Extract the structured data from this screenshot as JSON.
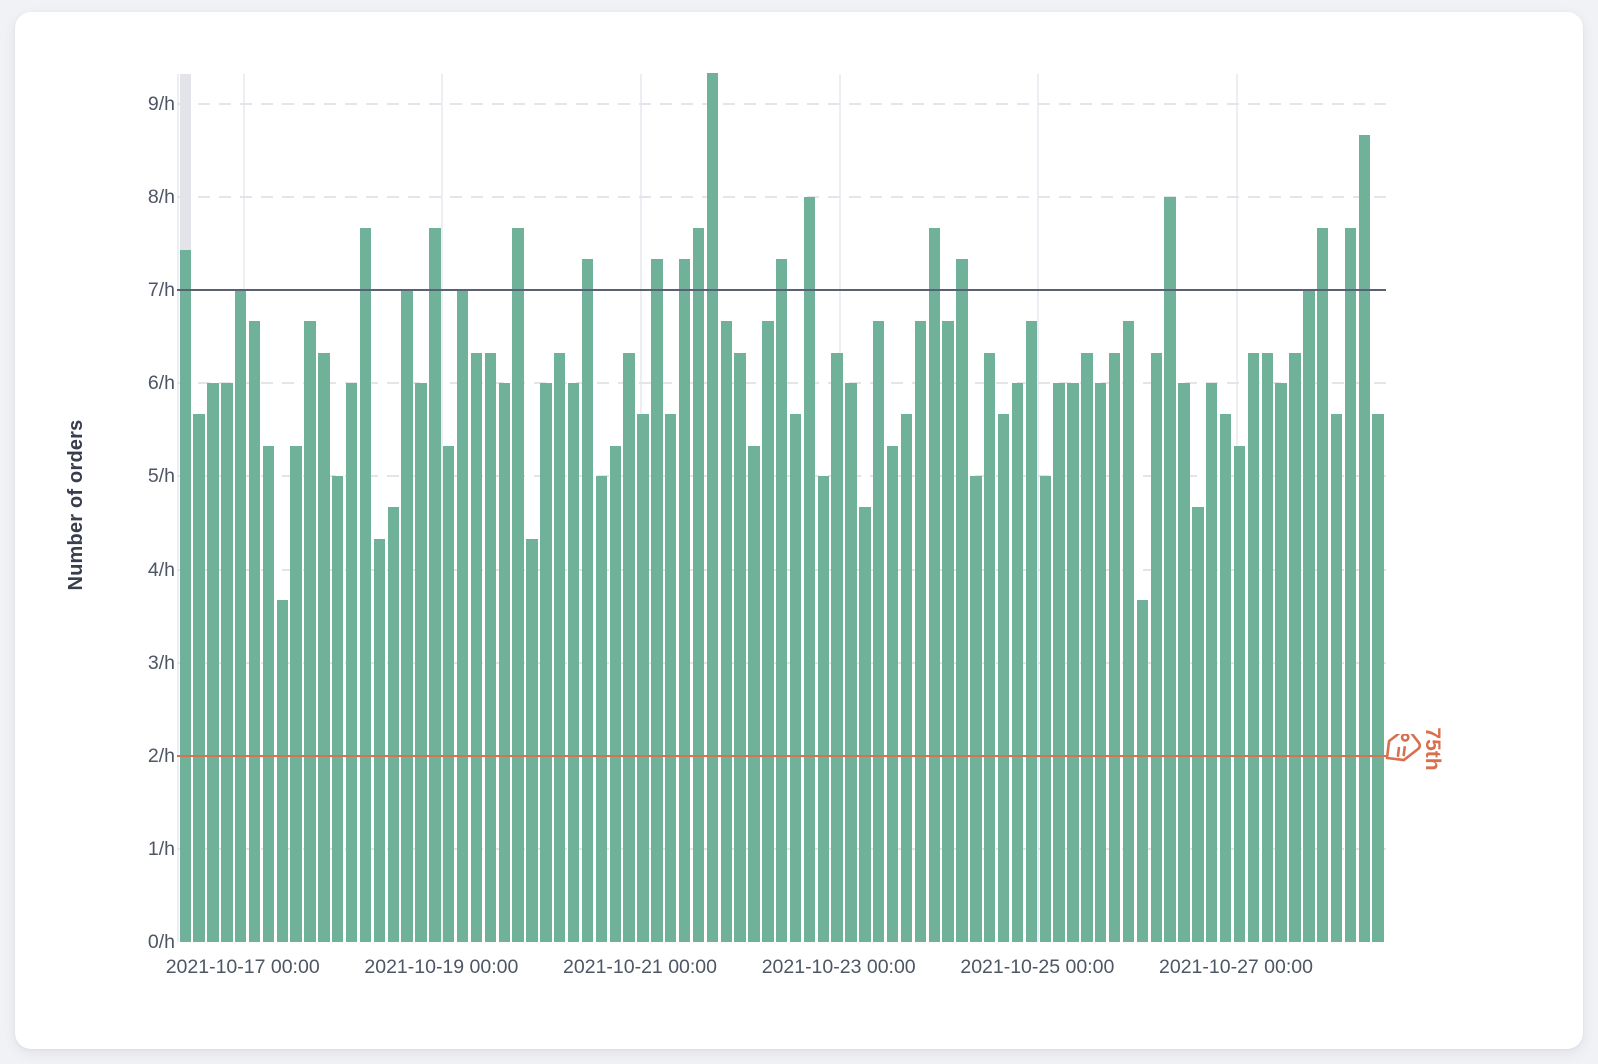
{
  "chart_data": {
    "type": "bar",
    "title": "",
    "ylabel": "Number of orders",
    "xlabel": "",
    "unit_suffix": "/h",
    "ylim": [
      0,
      9.35
    ],
    "grid": true,
    "y_ticks": [
      "0/h",
      "1/h",
      "2/h",
      "3/h",
      "4/h",
      "5/h",
      "6/h",
      "7/h",
      "8/h",
      "9/h"
    ],
    "x_ticks": [
      "2021-10-17 00:00",
      "2021-10-19 00:00",
      "2021-10-21 00:00",
      "2021-10-23 00:00",
      "2021-10-25 00:00",
      "2021-10-27 00:00"
    ],
    "values": [
      7.43,
      5.67,
      6,
      6,
      7,
      6.67,
      5.33,
      3.67,
      5.33,
      6.67,
      6.33,
      5,
      6,
      7.67,
      4.33,
      4.67,
      7,
      6,
      7.67,
      5.33,
      7,
      6.33,
      6.33,
      6,
      7.67,
      4.33,
      6,
      6.33,
      6,
      7.33,
      5,
      5.33,
      6.33,
      5.67,
      7.33,
      5.67,
      7.33,
      7.67,
      9.33,
      6.67,
      6.33,
      5.33,
      6.67,
      7.33,
      5.67,
      8,
      5,
      6.33,
      6,
      4.67,
      6.67,
      5.33,
      5.67,
      6.67,
      7.67,
      6.67,
      7.33,
      5,
      6.33,
      5.67,
      6,
      6.67,
      5,
      6,
      6,
      6.33,
      6,
      6.33,
      6.67,
      3.67,
      6.33,
      8,
      6,
      4.67,
      6,
      5.67,
      5.33,
      6.33,
      6.33,
      6,
      6.33,
      7,
      7.67,
      5.67,
      7.67,
      8.67,
      5.67
    ],
    "bar_color": "#70b19a",
    "highlight_first_bar": true,
    "highlight_band_color": "#e2e4e9",
    "reference_lines": [
      {
        "value": 7,
        "color": "#5a6170",
        "label": ""
      },
      {
        "value": 2,
        "color": "#d9734f",
        "label": "75th",
        "icon": "tag-icon"
      }
    ],
    "legend_position": "none"
  }
}
